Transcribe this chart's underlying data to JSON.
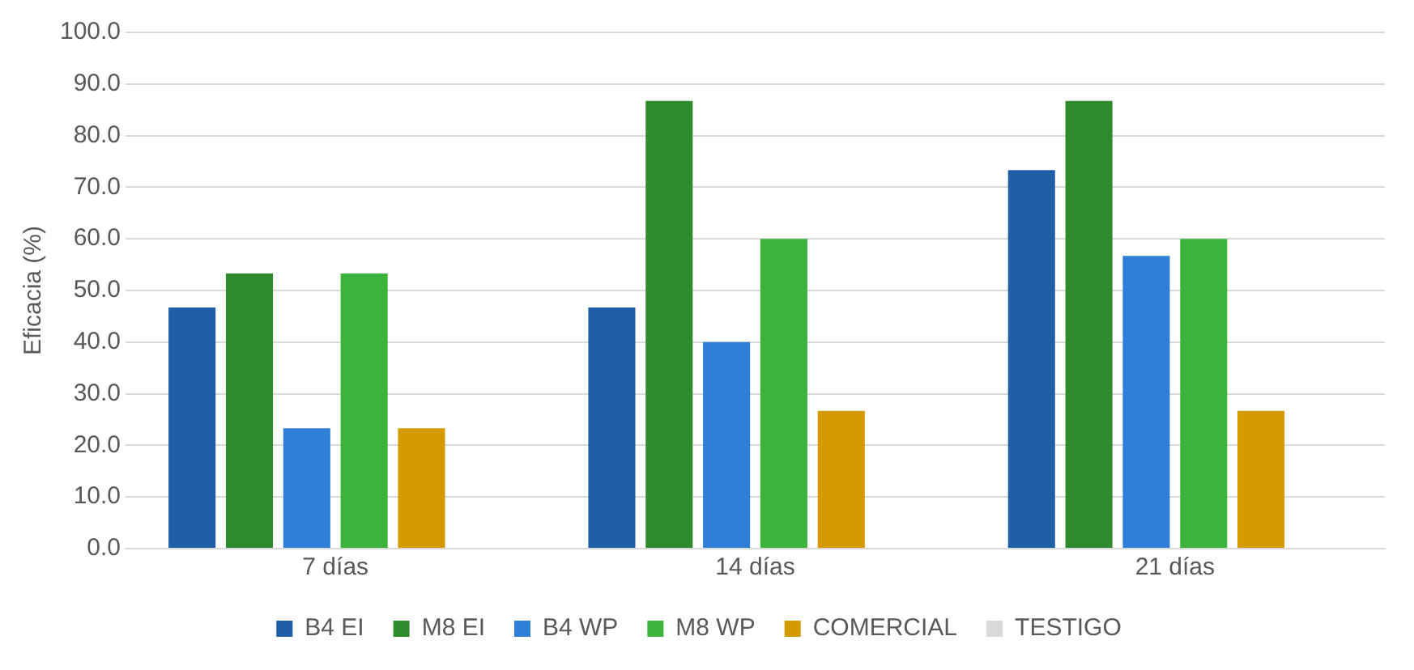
{
  "chart_data": {
    "type": "bar",
    "ylabel": "Eficacia (%)",
    "categories": [
      "7 días",
      "14 días",
      "21 días"
    ],
    "series": [
      {
        "name": "B4 EI",
        "color": "#1f5fa8",
        "values": [
          46.7,
          46.7,
          73.3
        ]
      },
      {
        "name": "M8 EI",
        "color": "#2e8b2e",
        "values": [
          53.3,
          86.7,
          86.7
        ]
      },
      {
        "name": "B4 WP",
        "color": "#2f7fd8",
        "values": [
          23.3,
          40.0,
          56.7
        ]
      },
      {
        "name": "M8 WP",
        "color": "#3cb43c",
        "values": [
          53.3,
          60.0,
          60.0
        ]
      },
      {
        "name": "COMERCIAL",
        "color": "#d49a00",
        "values": [
          23.3,
          26.7,
          26.7
        ]
      },
      {
        "name": "TESTIGO",
        "color": "#d9d9d9",
        "values": [
          0,
          0,
          0
        ]
      }
    ],
    "ylim": [
      0,
      100
    ],
    "yticks": [
      {
        "value": 0,
        "label": "0.0"
      },
      {
        "value": 10,
        "label": "10.0"
      },
      {
        "value": 20,
        "label": "20.0"
      },
      {
        "value": 30,
        "label": "30.0"
      },
      {
        "value": 40,
        "label": "40.0"
      },
      {
        "value": 50,
        "label": "50.0"
      },
      {
        "value": 60,
        "label": "60.0"
      },
      {
        "value": 70,
        "label": "70.0"
      },
      {
        "value": 80,
        "label": "80.0"
      },
      {
        "value": 90,
        "label": "90.0"
      },
      {
        "value": 100,
        "label": "100.0"
      }
    ],
    "grid": "y",
    "legend": "bottom"
  }
}
